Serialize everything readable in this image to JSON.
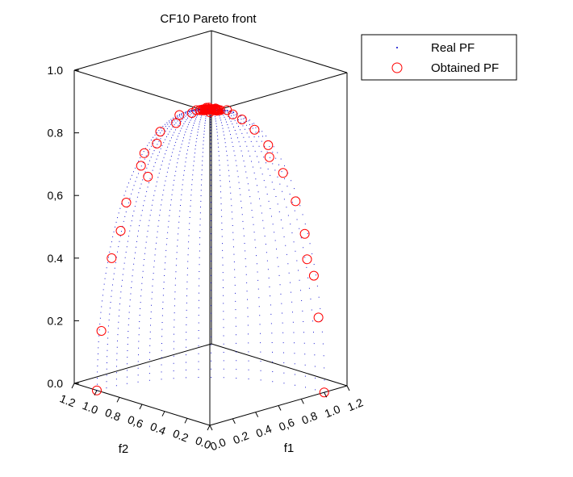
{
  "chart_data": {
    "type": "scatter3d",
    "title": "CF10 Pareto front",
    "xlabel": "f1",
    "ylabel": "f2",
    "zlabel": "",
    "xlim": [
      0,
      1.2
    ],
    "ylim": [
      0,
      1.2
    ],
    "zlim": [
      0,
      1.0
    ],
    "xticks": [
      "0.0",
      "0.2",
      "0.4",
      "0,6",
      "0.8",
      "1.0",
      "1.2"
    ],
    "yticks": [
      "0.0",
      "0.2",
      "0.4",
      "0,6",
      "0.8",
      "1.0",
      "1.2"
    ],
    "zticks": [
      "0.0",
      "0.2",
      "0.4",
      "0,6",
      "0.8",
      "1.0"
    ],
    "legend_position": "top-right outside",
    "grid": false,
    "colors": {
      "real": "#0000cc",
      "obtained": "#ff0000"
    },
    "series": [
      {
        "name": "Real PF",
        "marker": "dot",
        "description_of_surface": "f1^2 + f2^2 + f3^2 = 1, f1,f2,f3 >= 0",
        "values": []
      },
      {
        "name": "Obtained PF",
        "marker": "circle",
        "points": [
          [
            0.0,
            0.0,
            1.0
          ],
          [
            0.02,
            0.98,
            0.19
          ],
          [
            0.03,
            0.9,
            0.43
          ],
          [
            0.06,
            0.85,
            0.52
          ],
          [
            0.04,
            0.78,
            0.62
          ],
          [
            0.05,
            0.66,
            0.75
          ],
          [
            0.08,
            0.55,
            0.83
          ],
          [
            0.04,
            0.48,
            0.88
          ],
          [
            0.1,
            0.4,
            0.91
          ],
          [
            0.05,
            0.32,
            0.95
          ],
          [
            0.09,
            0.25,
            0.96
          ],
          [
            0.06,
            0.18,
            0.98
          ],
          [
            0.11,
            0.12,
            0.99
          ],
          [
            0.05,
            0.08,
            1.0
          ],
          [
            0.12,
            0.05,
            0.99
          ],
          [
            0.08,
            0.03,
            1.0
          ],
          [
            0.3,
            0.1,
            0.95
          ],
          [
            0.45,
            0.06,
            0.89
          ],
          [
            0.56,
            0.05,
            0.83
          ],
          [
            0.68,
            0.04,
            0.73
          ],
          [
            0.78,
            0.03,
            0.63
          ],
          [
            0.9,
            0.05,
            0.43
          ],
          [
            0.97,
            0.02,
            0.24
          ],
          [
            1.0,
            0.0,
            0.0
          ],
          [
            0.2,
            0.05,
            0.98
          ],
          [
            0.36,
            0.08,
            0.93
          ],
          [
            0.62,
            0.1,
            0.78
          ],
          [
            0.85,
            0.02,
            0.52
          ],
          [
            0.92,
            0.01,
            0.38
          ],
          [
            0.0,
            1.0,
            0.0
          ],
          [
            0.15,
            0.7,
            0.7
          ],
          [
            0.02,
            0.6,
            0.8
          ]
        ]
      }
    ],
    "legend": [
      "Real PF",
      "Obtained PF"
    ]
  }
}
